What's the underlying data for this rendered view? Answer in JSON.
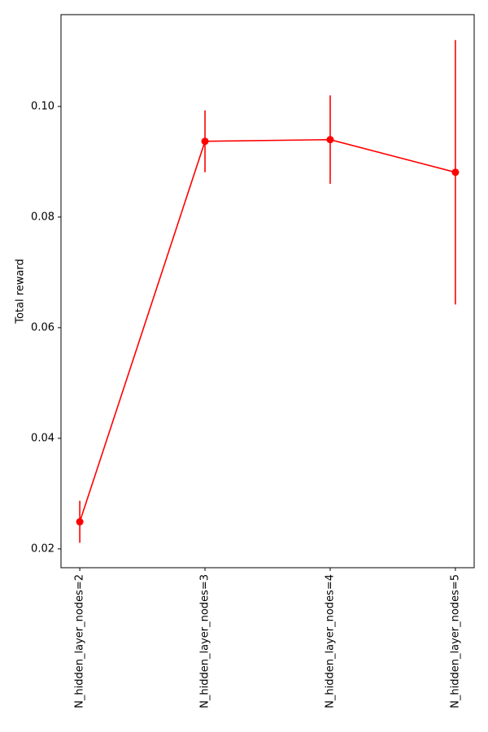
{
  "chart_data": {
    "type": "line",
    "ylabel": "Total reward",
    "categories": [
      "N_hidden_layer_nodes=2",
      "N_hidden_layer_nodes=3",
      "N_hidden_layer_nodes=4",
      "N_hidden_layer_nodes=5"
    ],
    "values": [
      0.0249,
      0.0937,
      0.094,
      0.0881
    ],
    "errors": [
      0.0038,
      0.0056,
      0.008,
      0.0239
    ],
    "color": "#ff0000",
    "ylim": [
      0.0166,
      0.1166
    ],
    "yticks": [
      {
        "value": 0.02,
        "label": "0.02"
      },
      {
        "value": 0.04,
        "label": "0.04"
      },
      {
        "value": 0.06,
        "label": "0.06"
      },
      {
        "value": 0.08,
        "label": "0.08"
      },
      {
        "value": 0.1,
        "label": "0.10"
      }
    ],
    "grid": false
  }
}
